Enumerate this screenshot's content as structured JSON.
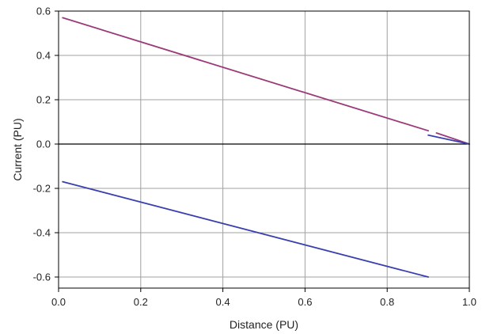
{
  "chart_data": {
    "type": "line",
    "xlabel": "Distance (PU)",
    "ylabel": "Current (PU)",
    "xlim": [
      0.0,
      1.0
    ],
    "ylim": [
      -0.65,
      0.6
    ],
    "xticks": [
      "0.0",
      "0.2",
      "0.4",
      "0.6",
      "0.8",
      "1.0"
    ],
    "yticks": [
      "0.6",
      "0.4",
      "0.2",
      "0.0",
      "-0.2",
      "-0.4",
      "-0.6"
    ],
    "grid": true,
    "zero_line": true,
    "colors": {
      "series_a": "#9b3a78",
      "series_b": "#3a3fb0",
      "grid": "#a0a0a0",
      "axis": "#000000"
    },
    "series": [
      {
        "segments": [
          {
            "x": [
              0.01,
              0.9
            ],
            "y": [
              0.57,
              0.06
            ]
          },
          {
            "x": [
              0.92,
              1.0
            ],
            "y": [
              0.05,
              0.0
            ]
          }
        ],
        "color": "#9b3a78"
      },
      {
        "segments": [
          {
            "x": [
              0.01,
              0.9
            ],
            "y": [
              -0.17,
              -0.6
            ]
          },
          {
            "x": [
              0.9,
              1.0
            ],
            "y": [
              0.04,
              0.0
            ]
          }
        ],
        "color": "#3a3fb0"
      }
    ]
  }
}
